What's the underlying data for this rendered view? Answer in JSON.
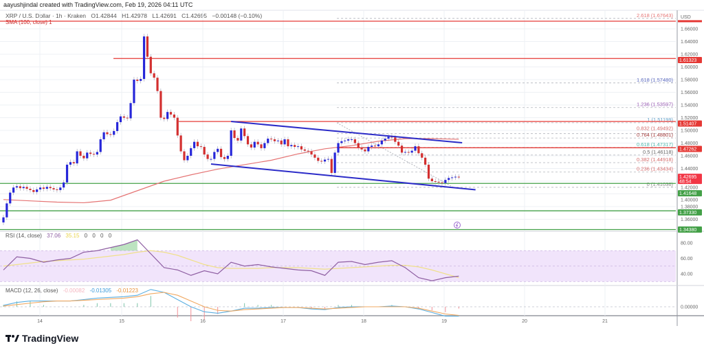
{
  "header": {
    "credit": "aayushjindal created with TradingView.com, Feb 19, 2026 04:11 UTC",
    "symbol": "XRP / U.S. Dollar · 1h · Kraken",
    "open": "O1.42844",
    "high": "H1.42978",
    "low": "L1.42691",
    "close": "C1.42695",
    "change": "−0.00148 (−0.10%)",
    "sma_legend": "SMA (100, close)  1"
  },
  "price_axis": {
    "currency": "USD",
    "ticks": [
      "1.66000",
      "1.64000",
      "1.62000",
      "1.60000",
      "1.58000",
      "1.56000",
      "1.54000",
      "1.52000",
      "1.50000",
      "1.48000",
      "1.46000",
      "1.44000",
      "1.42000",
      "1.40000",
      "1.38000",
      "1.36000"
    ],
    "tags": [
      {
        "value": "1.61323",
        "color": "#e53935"
      },
      {
        "value": "1.51407",
        "color": "#e53935"
      },
      {
        "value": "1.47262",
        "color": "#e53935"
      },
      {
        "value": "1.42695",
        "sub": "48:54",
        "color": "#f23645"
      },
      {
        "value": "1.41648",
        "color": "#43a047"
      },
      {
        "value": "1.37330",
        "color": "#43a047"
      },
      {
        "value": "1.34380",
        "color": "#43a047"
      }
    ]
  },
  "time_axis": {
    "labels": [
      "14",
      "15",
      "16",
      "17",
      "18",
      "19",
      "20",
      "21"
    ]
  },
  "colors": {
    "up": "#2626d9",
    "down": "#d32f2f",
    "sma": "#e57373",
    "channel": "#2b2bc8",
    "resistance": "#e53935",
    "support": "#43a047",
    "rsi": "#8e5ea2",
    "rsi_ma": "#f0e08a",
    "macd": "#5aaee0",
    "signal": "#f0a860"
  },
  "rsi": {
    "label": "RSI (14, close)",
    "value": "37.06",
    "ma_value": "35.15",
    "extras": [
      "0",
      "0",
      "0",
      "0"
    ],
    "ticks": [
      "80.00",
      "60.00",
      "40.00"
    ]
  },
  "macd": {
    "label": "MACD (12, 26, close)",
    "hist_value": "-0.00082",
    "macd_value": "-0.01305",
    "signal_value": "-0.01223",
    "ticks": [
      "0.00000"
    ]
  },
  "branding": {
    "logo_text": "TradingView"
  },
  "chart_data": {
    "type": "candlestick",
    "interval": "1h",
    "start": "Feb 13 13:00",
    "closes": [
      1.363,
      1.385,
      1.402,
      1.41,
      1.412,
      1.409,
      1.411,
      1.408,
      1.406,
      1.403,
      1.407,
      1.41,
      1.408,
      1.411,
      1.409,
      1.407,
      1.406,
      1.41,
      1.418,
      1.446,
      1.45,
      1.448,
      1.467,
      1.46,
      1.456,
      1.465,
      1.463,
      1.462,
      1.466,
      1.486,
      1.497,
      1.494,
      1.493,
      1.499,
      1.513,
      1.522,
      1.52,
      1.519,
      1.543,
      1.58,
      1.578,
      1.581,
      1.648,
      1.616,
      1.59,
      1.583,
      1.562,
      1.52,
      1.518,
      1.529,
      1.525,
      1.52,
      1.492,
      1.467,
      1.453,
      1.46,
      1.472,
      1.482,
      1.475,
      1.474,
      1.462,
      1.455,
      1.455,
      1.466,
      1.471,
      1.458,
      1.455,
      1.46,
      1.5,
      1.488,
      1.484,
      1.503,
      1.491,
      1.478,
      1.473,
      1.482,
      1.478,
      1.472,
      1.48,
      1.487,
      1.486,
      1.483,
      1.484,
      1.478,
      1.486,
      1.475,
      1.477,
      1.474,
      1.475,
      1.47,
      1.468,
      1.467,
      1.462,
      1.457,
      1.452,
      1.451,
      1.454,
      1.455,
      1.433,
      1.465,
      1.48,
      1.483,
      1.484,
      1.486,
      1.486,
      1.48,
      1.473,
      1.47,
      1.467,
      1.474,
      1.476,
      1.475,
      1.478,
      1.484,
      1.487,
      1.49,
      1.489,
      1.482,
      1.476,
      1.465,
      1.466,
      1.465,
      1.468,
      1.475,
      1.464,
      1.457,
      1.446,
      1.424,
      1.42,
      1.419,
      1.418,
      1.417,
      1.422,
      1.425,
      1.426,
      1.427,
      1.42695
    ],
    "sma100_every_8h": [
      1.391,
      1.389,
      1.387,
      1.386,
      1.39,
      1.405,
      1.42,
      1.43,
      1.439,
      1.446,
      1.453,
      1.463,
      1.471,
      1.476,
      1.483,
      1.487,
      1.487,
      1.486
    ],
    "horizontal_levels": [
      {
        "price": 1.672,
        "color": "resistance",
        "from": "start"
      },
      {
        "price": 1.61323,
        "color": "resistance",
        "from": "Feb 15"
      },
      {
        "price": 1.51407,
        "color": "resistance",
        "from": "Feb 15 pm"
      },
      {
        "price": 1.47262,
        "color": "resistance",
        "from": "Feb 17 pm"
      },
      {
        "price": 1.41648,
        "color": "support",
        "from": "start"
      },
      {
        "price": 1.3733,
        "color": "support",
        "from": "start"
      },
      {
        "price": 1.3438,
        "color": "support",
        "from": "start"
      }
    ],
    "fibonacci": [
      {
        "label": "2.618 (1.67643)",
        "price": 1.67643,
        "color": "#e57373"
      },
      {
        "label": "1.618 (1.57480)",
        "price": 1.5748,
        "color": "#5c6bc0"
      },
      {
        "label": "1.236 (1.53597)",
        "price": 1.53597,
        "color": "#9c5fb5"
      },
      {
        "label": "1 (1.51199)",
        "price": 1.51199,
        "color": "#64a0c8"
      },
      {
        "label": "0.832 (1.49492)",
        "price": 1.49492,
        "color": "#d46a6a"
      },
      {
        "label": "0.764 (1.48801)",
        "price": 1.48801,
        "color": "#a33b3b"
      },
      {
        "label": "0.618 (1.47317)",
        "price": 1.47317,
        "color": "#4db6ac"
      },
      {
        "label": "0.5 (1.46118)",
        "price": 1.46118,
        "color": "#666666"
      },
      {
        "label": "0.382 (1.44918)",
        "price": 1.44918,
        "color": "#d46a6a"
      },
      {
        "label": "0.236 (1.43434)",
        "price": 1.43434,
        "color": "#d46a6a"
      },
      {
        "label": "0 (1.41036)",
        "price": 1.41036,
        "color": "#888888"
      }
    ],
    "channel": {
      "upper": [
        {
          "hour": 68,
          "price": 1.514
        },
        {
          "hour": 137,
          "price": 1.4805
        }
      ],
      "lower": [
        {
          "hour": 62,
          "price": 1.447
        },
        {
          "hour": 141,
          "price": 1.4065
        }
      ]
    },
    "rsi_every_4h": [
      45,
      62,
      60,
      55,
      58,
      60,
      68,
      70,
      74,
      78,
      84,
      66,
      48,
      45,
      38,
      44,
      40,
      55,
      50,
      52,
      49,
      47,
      45,
      44,
      38,
      55,
      56,
      52,
      55,
      57,
      48,
      35,
      31,
      35,
      37
    ],
    "rsi_ma_every_4h": [
      50,
      52,
      54,
      56,
      57,
      58,
      59,
      61,
      63,
      65,
      68,
      70,
      68,
      64,
      58,
      52,
      48,
      47,
      47,
      47,
      48,
      48,
      48,
      47,
      46,
      47,
      48,
      49,
      50,
      51,
      51,
      49,
      45,
      40,
      35
    ],
    "macd_every_4h": [
      0.002,
      0.006,
      0.008,
      0.008,
      0.008,
      0.008,
      0.01,
      0.012,
      0.013,
      0.014,
      0.016,
      0.024,
      0.02,
      0.01,
      0.0,
      -0.007,
      -0.009,
      -0.006,
      -0.002,
      -0.002,
      -0.001,
      -0.001,
      -0.001,
      -0.003,
      -0.004,
      -0.001,
      0.0,
      0.0,
      0.0,
      0.001,
      0.0,
      -0.003,
      -0.008,
      -0.013,
      -0.013
    ],
    "signal_every_4h": [
      0.001,
      0.003,
      0.005,
      0.007,
      0.008,
      0.008,
      0.009,
      0.01,
      0.011,
      0.012,
      0.014,
      0.018,
      0.02,
      0.016,
      0.008,
      0.0,
      -0.005,
      -0.006,
      -0.004,
      -0.003,
      -0.002,
      -0.001,
      -0.001,
      -0.002,
      -0.003,
      -0.002,
      -0.001,
      0.0,
      0.0,
      0.0,
      0.0,
      -0.002,
      -0.006,
      -0.01,
      -0.012
    ],
    "rsi_band": [
      30,
      70
    ],
    "grid": true
  }
}
